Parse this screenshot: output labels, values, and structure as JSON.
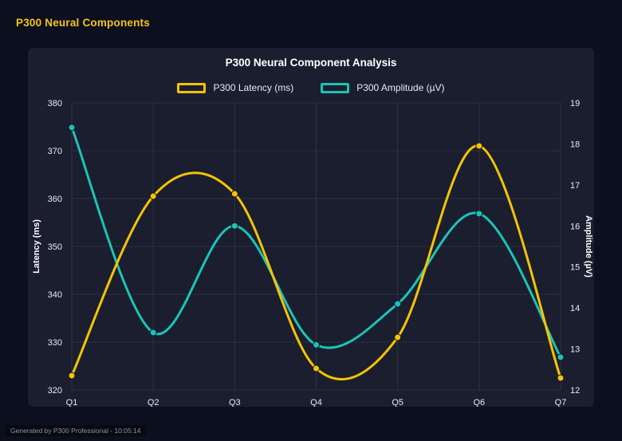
{
  "page": {
    "title": "P300 Neural Components",
    "footer": "Generated by P300 Professional - 10:05:14"
  },
  "chart_data": {
    "type": "line",
    "title": "P300 Neural Component Analysis",
    "categories": [
      "Q1",
      "Q2",
      "Q3",
      "Q4",
      "Q5",
      "Q6",
      "Q7"
    ],
    "series": [
      {
        "name": "P300 Latency (ms)",
        "axis": "left",
        "color": "#f5c400",
        "values": [
          323,
          360.5,
          361,
          324.5,
          331,
          371,
          322.5
        ]
      },
      {
        "name": "P300 Amplitude (µV)",
        "axis": "right",
        "color": "#1cc3b6",
        "values": [
          18.4,
          13.4,
          16.0,
          13.1,
          14.1,
          16.3,
          12.8
        ]
      }
    ],
    "left_axis": {
      "label": "Latency (ms)",
      "min": 320,
      "max": 380,
      "step": 10
    },
    "right_axis": {
      "label": "Amplitude (µV)",
      "min": 12,
      "max": 19,
      "step": 1
    },
    "grid": true,
    "legend_position": "top",
    "smooth": true
  }
}
